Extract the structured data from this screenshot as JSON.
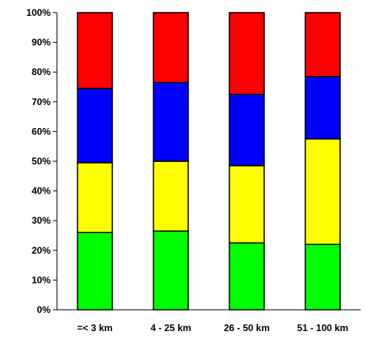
{
  "chart_data": {
    "type": "bar",
    "stacked": true,
    "percent_stacked": true,
    "categories": [
      "=< 3 km",
      "4 - 25 km",
      "26 - 50 km",
      "51 - 100 km"
    ],
    "series": [
      {
        "color": "#00ff00",
        "values": [
          26,
          26.5,
          22.5,
          22
        ]
      },
      {
        "color": "#ffff00",
        "values": [
          23.5,
          23.5,
          26,
          35.5
        ]
      },
      {
        "color": "#0000ff",
        "values": [
          25,
          26.5,
          24,
          21
        ]
      },
      {
        "color": "#ff0000",
        "values": [
          25.5,
          23.5,
          27.5,
          21.5
        ]
      }
    ],
    "y_ticks": [
      "0%",
      "10%",
      "20%",
      "30%",
      "40%",
      "50%",
      "60%",
      "70%",
      "80%",
      "90%",
      "100%"
    ],
    "ylim": [
      0,
      100
    ],
    "grid": false,
    "legend": "none"
  }
}
